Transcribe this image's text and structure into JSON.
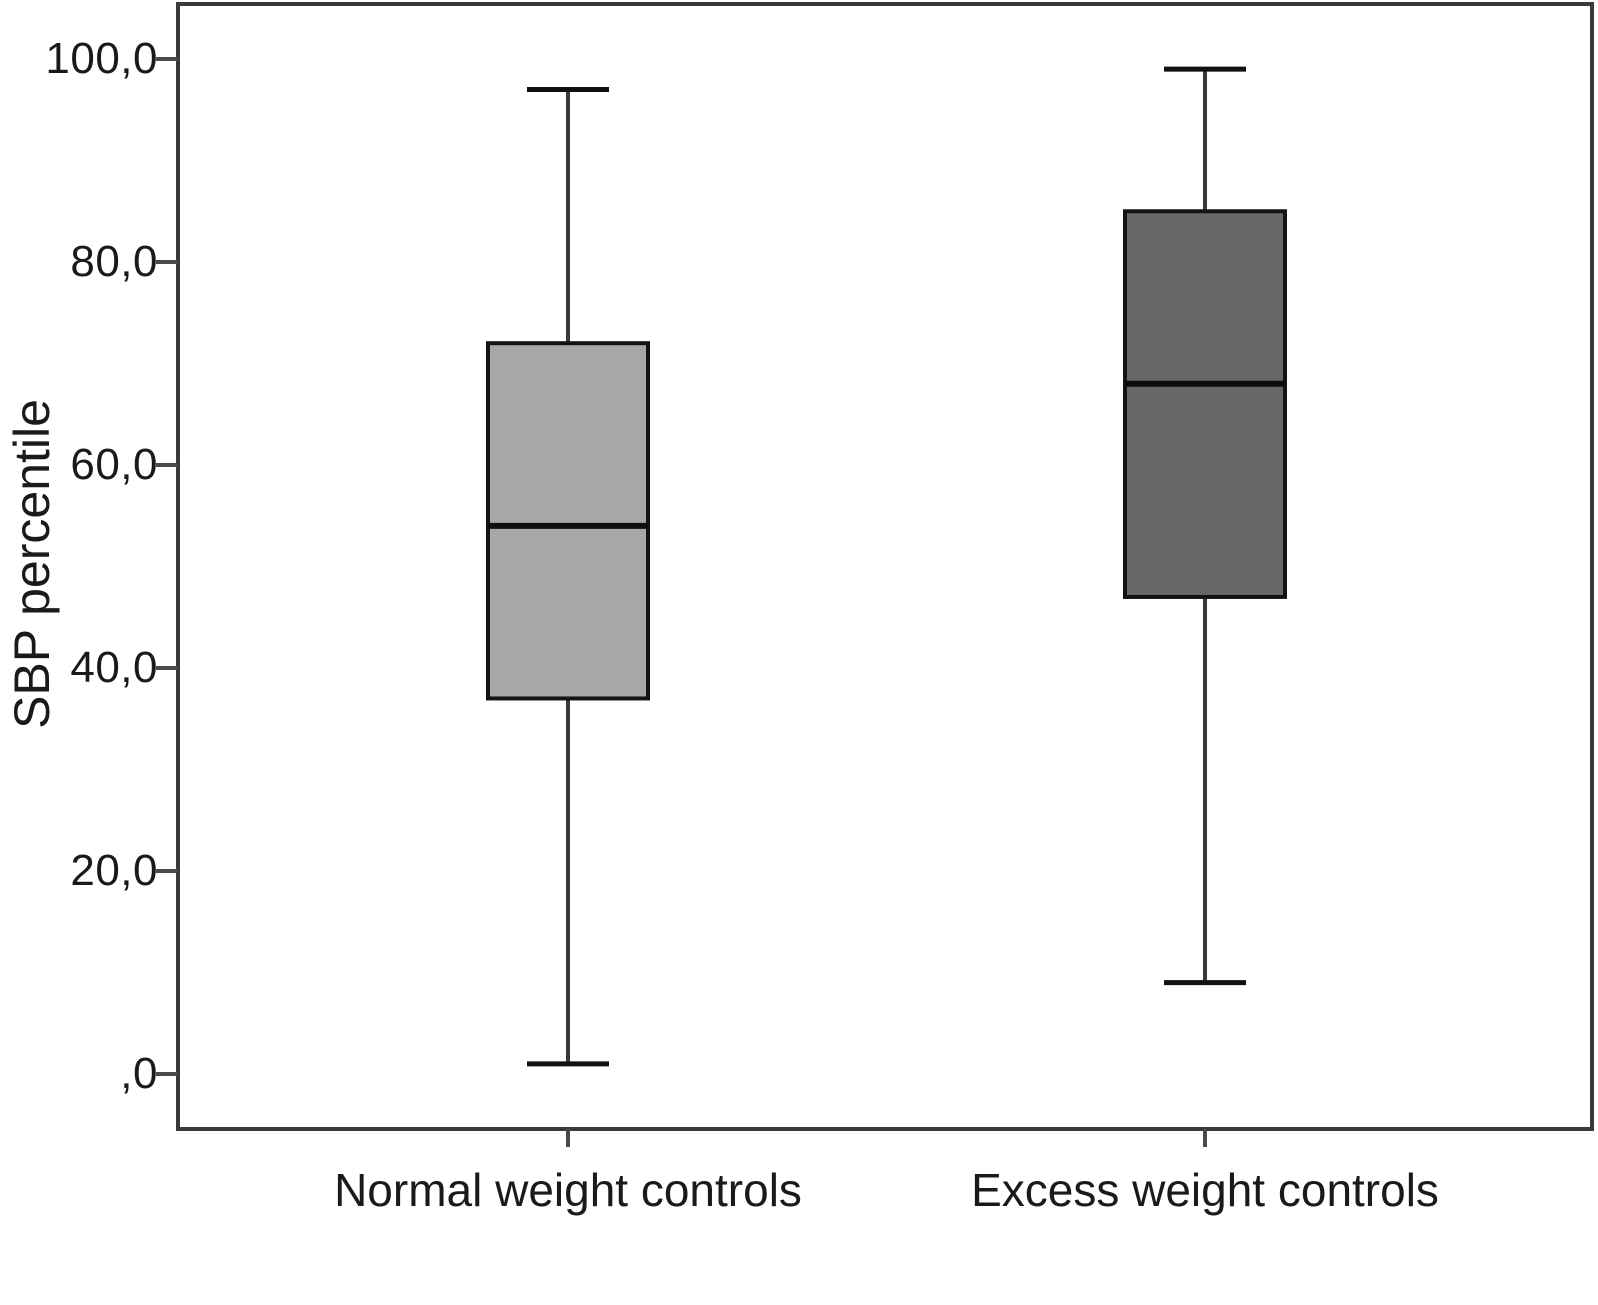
{
  "chart_data": {
    "type": "box",
    "title": "",
    "xlabel": "",
    "ylabel": "SBP percentile",
    "categories": [
      "Normal weight controls",
      "Excess weight controls"
    ],
    "series": [
      {
        "name": "Normal weight controls",
        "whisker_low": 1,
        "q1": 37,
        "median": 54,
        "q3": 72,
        "whisker_high": 97,
        "fill": "#a7a7a7"
      },
      {
        "name": "Excess weight controls",
        "whisker_low": 9,
        "q1": 47,
        "median": 68,
        "q3": 85,
        "whisker_high": 99,
        "fill": "#676767"
      }
    ],
    "y_axis": {
      "ticks": [
        100,
        80,
        60,
        40,
        20,
        0
      ],
      "tick_labels": [
        "100,0",
        "80,0",
        "60,0",
        "40,0",
        "20,0",
        ",0"
      ],
      "range": [
        0,
        100
      ]
    },
    "grid": false,
    "legend": false,
    "colors": {
      "frame": "#3a3a3a",
      "axis_tick": "#4a4a4a",
      "box_border": "#141414",
      "median_line": "#0d0d0d",
      "whisker_line": "#3a3a3a",
      "whisker_cap": "#111111",
      "text": "#1a1a1a",
      "background": "#ffffff"
    }
  }
}
